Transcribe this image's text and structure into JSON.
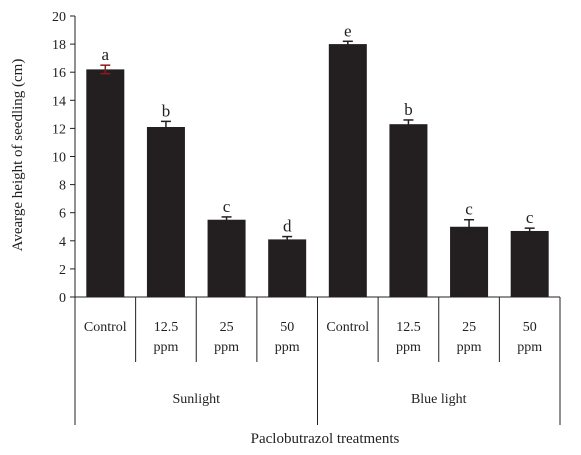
{
  "chart_data": {
    "type": "bar",
    "title": "",
    "ylabel": "Avearge height of  seedling (cm)",
    "xlabel": "Paclobutrazol treatments",
    "ylim": [
      0,
      20
    ],
    "ytick_step": 2,
    "ytick_labels": [
      "0",
      "2",
      "4",
      "6",
      "8",
      "10",
      "12",
      "14",
      "16",
      "18",
      "20"
    ],
    "grid": false,
    "legend": "none",
    "groups": [
      {
        "label": "Sunlight",
        "categories": [
          [
            "Control"
          ],
          [
            "12.5",
            "ppm"
          ],
          [
            "25",
            "ppm"
          ],
          [
            "50",
            "ppm"
          ]
        ]
      },
      {
        "label": "Blue light",
        "categories": [
          [
            "Control"
          ],
          [
            "12.5",
            "ppm"
          ],
          [
            "25",
            "ppm"
          ],
          [
            "50",
            "ppm"
          ]
        ]
      }
    ],
    "values": [
      16.2,
      12.1,
      5.5,
      4.1,
      18.0,
      12.3,
      5.0,
      4.7
    ],
    "errors": [
      0.3,
      0.4,
      0.2,
      0.2,
      0.2,
      0.3,
      0.5,
      0.2
    ],
    "significance": [
      "a",
      "b",
      "c",
      "d",
      "e",
      "b",
      "c",
      "c"
    ],
    "bar_color": "#231f20",
    "error_color_first": "#8b1a1a",
    "error_color": "#231f20"
  }
}
